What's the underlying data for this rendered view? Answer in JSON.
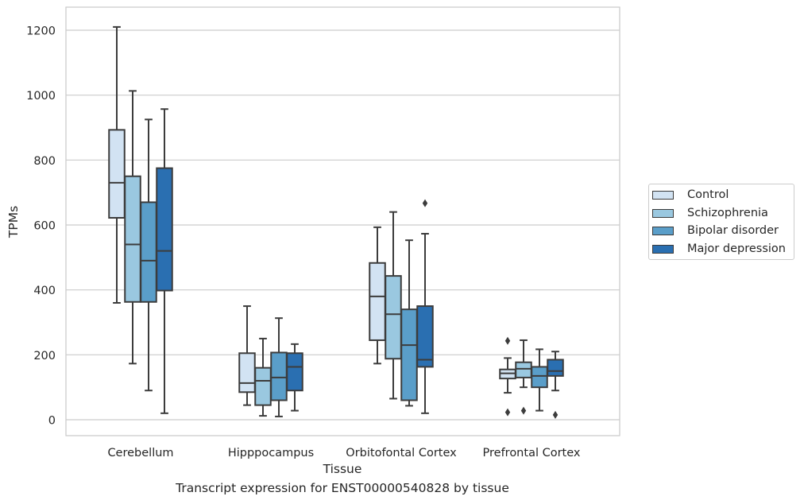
{
  "caption": "Transcript expression for ENST00000540828 by tissue",
  "chart_data": {
    "type": "box",
    "xlabel": "Tissue",
    "ylabel": "TPMs",
    "ylim": [
      -50,
      1265
    ],
    "yticks": [
      0,
      200,
      400,
      600,
      800,
      1000,
      1200
    ],
    "grid": "horizontal",
    "legend_position": "right",
    "categories": [
      "Cerebellum",
      "Hipppocampus",
      "Orbitofontal Cortex",
      "Prefrontal Cortex"
    ],
    "series": [
      {
        "name": "Control",
        "color": "#d2e3f3",
        "boxes": [
          {
            "whisker_low": 360,
            "q1": 622,
            "median": 730,
            "q3": 893,
            "whisker_high": 1210,
            "outliers": []
          },
          {
            "whisker_low": 45,
            "q1": 85,
            "median": 113,
            "q3": 205,
            "whisker_high": 350,
            "outliers": []
          },
          {
            "whisker_low": 173,
            "q1": 245,
            "median": 380,
            "q3": 483,
            "whisker_high": 593,
            "outliers": []
          },
          {
            "whisker_low": 83,
            "q1": 127,
            "median": 143,
            "q3": 155,
            "whisker_high": 190,
            "outliers": [
              243,
              23
            ]
          }
        ]
      },
      {
        "name": "Schizophrenia",
        "color": "#9ac8e0",
        "boxes": [
          {
            "whisker_low": 173,
            "q1": 363,
            "median": 540,
            "q3": 750,
            "whisker_high": 1013,
            "outliers": []
          },
          {
            "whisker_low": 12,
            "q1": 45,
            "median": 120,
            "q3": 160,
            "whisker_high": 250,
            "outliers": []
          },
          {
            "whisker_low": 65,
            "q1": 188,
            "median": 325,
            "q3": 443,
            "whisker_high": 640,
            "outliers": []
          },
          {
            "whisker_low": 100,
            "q1": 130,
            "median": 157,
            "q3": 177,
            "whisker_high": 245,
            "outliers": [
              28
            ]
          }
        ]
      },
      {
        "name": "Bipolar disorder",
        "color": "#5a9ec9",
        "boxes": [
          {
            "whisker_low": 90,
            "q1": 363,
            "median": 490,
            "q3": 670,
            "whisker_high": 925,
            "outliers": []
          },
          {
            "whisker_low": 10,
            "q1": 60,
            "median": 130,
            "q3": 207,
            "whisker_high": 313,
            "outliers": []
          },
          {
            "whisker_low": 43,
            "q1": 60,
            "median": 230,
            "q3": 340,
            "whisker_high": 553,
            "outliers": []
          },
          {
            "whisker_low": 28,
            "q1": 100,
            "median": 135,
            "q3": 163,
            "whisker_high": 217,
            "outliers": []
          }
        ]
      },
      {
        "name": "Major depression",
        "color": "#2a6fb1",
        "boxes": [
          {
            "whisker_low": 20,
            "q1": 398,
            "median": 520,
            "q3": 775,
            "whisker_high": 957,
            "outliers": []
          },
          {
            "whisker_low": 28,
            "q1": 90,
            "median": 163,
            "q3": 205,
            "whisker_high": 233,
            "outliers": []
          },
          {
            "whisker_low": 20,
            "q1": 163,
            "median": 185,
            "q3": 350,
            "whisker_high": 573,
            "outliers": [
              667
            ]
          },
          {
            "whisker_low": 90,
            "q1": 135,
            "median": 150,
            "q3": 185,
            "whisker_high": 210,
            "outliers": [
              15
            ]
          }
        ]
      }
    ]
  }
}
